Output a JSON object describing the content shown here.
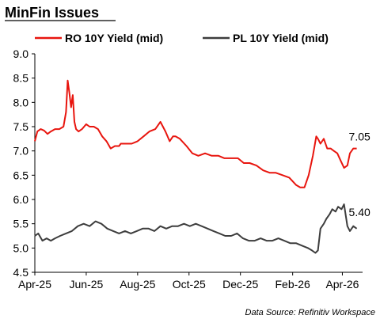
{
  "chart_data": {
    "type": "line",
    "title": "MinFin Issues",
    "source_note": "Data Source: Refinitiv Workspace",
    "ylim": [
      4.5,
      9.0
    ],
    "yticks": [
      "9.0",
      "8.5",
      "8.0",
      "7.5",
      "7.0",
      "6.5",
      "6.0",
      "5.5",
      "5.0",
      "4.5"
    ],
    "xticks": [
      "Apr-25",
      "Jun-25",
      "Aug-25",
      "Oct-25",
      "Dec-25",
      "Feb-26",
      "Apr-26"
    ],
    "legend_position": "top",
    "grid": false,
    "series": [
      {
        "name": "RO 10Y Yield (mid)",
        "color": "#e8150e",
        "end_label": "7.05",
        "x": [
          "2025-04-01",
          "2025-04-04",
          "2025-04-08",
          "2025-04-12",
          "2025-04-16",
          "2025-04-20",
          "2025-04-25",
          "2025-04-30",
          "2025-05-05",
          "2025-05-08",
          "2025-05-10",
          "2025-05-12",
          "2025-05-14",
          "2025-05-16",
          "2025-05-18",
          "2025-05-20",
          "2025-05-23",
          "2025-05-27",
          "2025-06-01",
          "2025-06-05",
          "2025-06-10",
          "2025-06-15",
          "2025-06-20",
          "2025-06-25",
          "2025-06-30",
          "2025-07-05",
          "2025-07-10",
          "2025-07-12",
          "2025-07-18",
          "2025-07-25",
          "2025-08-01",
          "2025-08-08",
          "2025-08-15",
          "2025-08-22",
          "2025-08-28",
          "2025-09-03",
          "2025-09-08",
          "2025-09-12",
          "2025-09-15",
          "2025-09-20",
          "2025-09-28",
          "2025-10-05",
          "2025-10-12",
          "2025-10-20",
          "2025-10-28",
          "2025-11-05",
          "2025-11-12",
          "2025-11-20",
          "2025-11-28",
          "2025-12-05",
          "2025-12-12",
          "2025-12-20",
          "2025-12-28",
          "2026-01-05",
          "2026-01-12",
          "2026-01-20",
          "2026-01-28",
          "2026-02-05",
          "2026-02-10",
          "2026-02-15",
          "2026-02-20",
          "2026-02-25",
          "2026-03-01",
          "2026-03-03",
          "2026-03-06",
          "2026-03-10",
          "2026-03-14",
          "2026-03-18",
          "2026-03-22",
          "2026-03-26",
          "2026-03-30",
          "2026-04-03",
          "2026-04-07",
          "2026-04-10",
          "2026-04-14",
          "2026-04-18"
        ],
        "y": [
          7.2,
          7.4,
          7.45,
          7.42,
          7.35,
          7.4,
          7.45,
          7.45,
          7.5,
          7.8,
          8.45,
          8.2,
          7.9,
          8.15,
          7.6,
          7.45,
          7.4,
          7.45,
          7.55,
          7.5,
          7.5,
          7.45,
          7.3,
          7.2,
          7.05,
          7.1,
          7.1,
          7.15,
          7.15,
          7.15,
          7.2,
          7.3,
          7.4,
          7.45,
          7.6,
          7.4,
          7.2,
          7.3,
          7.3,
          7.25,
          7.1,
          6.95,
          6.9,
          6.95,
          6.9,
          6.9,
          6.85,
          6.85,
          6.85,
          6.75,
          6.75,
          6.7,
          6.6,
          6.55,
          6.55,
          6.5,
          6.45,
          6.3,
          6.25,
          6.25,
          6.5,
          6.9,
          7.3,
          7.25,
          7.15,
          7.25,
          7.05,
          7.05,
          7.0,
          6.95,
          6.8,
          6.65,
          6.7,
          6.95,
          7.05,
          7.05
        ]
      },
      {
        "name": "PL 10Y Yield (mid)",
        "color": "#3d3d3d",
        "end_label": "5.40",
        "x": [
          "2025-04-01",
          "2025-04-05",
          "2025-04-10",
          "2025-04-15",
          "2025-04-20",
          "2025-04-25",
          "2025-05-01",
          "2025-05-08",
          "2025-05-15",
          "2025-05-22",
          "2025-05-29",
          "2025-06-05",
          "2025-06-12",
          "2025-06-19",
          "2025-06-26",
          "2025-07-03",
          "2025-07-10",
          "2025-07-17",
          "2025-07-24",
          "2025-07-31",
          "2025-08-07",
          "2025-08-14",
          "2025-08-21",
          "2025-08-28",
          "2025-09-04",
          "2025-09-11",
          "2025-09-18",
          "2025-09-25",
          "2025-10-02",
          "2025-10-09",
          "2025-10-16",
          "2025-10-23",
          "2025-10-30",
          "2025-11-06",
          "2025-11-13",
          "2025-11-20",
          "2025-11-27",
          "2025-12-04",
          "2025-12-11",
          "2025-12-18",
          "2025-12-25",
          "2026-01-01",
          "2026-01-08",
          "2026-01-15",
          "2026-01-22",
          "2026-01-29",
          "2026-02-05",
          "2026-02-12",
          "2026-02-19",
          "2026-02-24",
          "2026-02-28",
          "2026-03-03",
          "2026-03-06",
          "2026-03-10",
          "2026-03-13",
          "2026-03-17",
          "2026-03-20",
          "2026-03-24",
          "2026-03-27",
          "2026-03-31",
          "2026-04-03",
          "2026-04-07",
          "2026-04-10",
          "2026-04-14",
          "2026-04-18"
        ],
        "y": [
          5.25,
          5.3,
          5.15,
          5.2,
          5.15,
          5.2,
          5.25,
          5.3,
          5.35,
          5.45,
          5.5,
          5.45,
          5.55,
          5.5,
          5.4,
          5.35,
          5.3,
          5.35,
          5.3,
          5.35,
          5.4,
          5.4,
          5.35,
          5.45,
          5.4,
          5.45,
          5.45,
          5.5,
          5.45,
          5.5,
          5.45,
          5.4,
          5.35,
          5.3,
          5.25,
          5.25,
          5.3,
          5.2,
          5.15,
          5.15,
          5.2,
          5.15,
          5.15,
          5.2,
          5.15,
          5.1,
          5.1,
          5.05,
          5.0,
          4.95,
          4.9,
          4.95,
          5.4,
          5.5,
          5.6,
          5.7,
          5.8,
          5.75,
          5.85,
          5.8,
          5.9,
          5.45,
          5.35,
          5.45,
          5.4
        ]
      }
    ]
  }
}
